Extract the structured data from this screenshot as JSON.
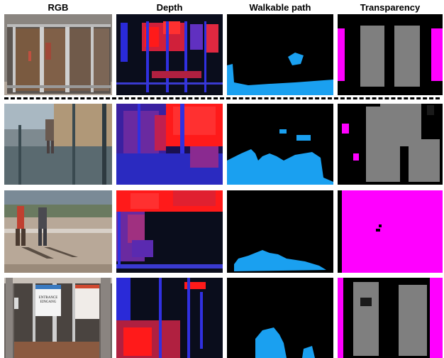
{
  "headers": [
    "RGB",
    "Depth",
    "Walkable path",
    "Transparency"
  ],
  "colors": {
    "depth_background": "#0a0d1c",
    "depth_near": "#ff1a1a",
    "depth_far": "#2a2ad8",
    "walkable_background": "#000000",
    "walkable_path": "#1aa0f0",
    "transparency_background": "#000000",
    "transparency_glass": "#7f7f7f",
    "transparency_other": "#ff00ff"
  },
  "rows": [
    {
      "entrance_sign": ""
    },
    {
      "entrance_sign": ""
    },
    {
      "entrance_sign": ""
    },
    {
      "entrance_sign": "ENTRANCE\nEINGANG"
    }
  ]
}
